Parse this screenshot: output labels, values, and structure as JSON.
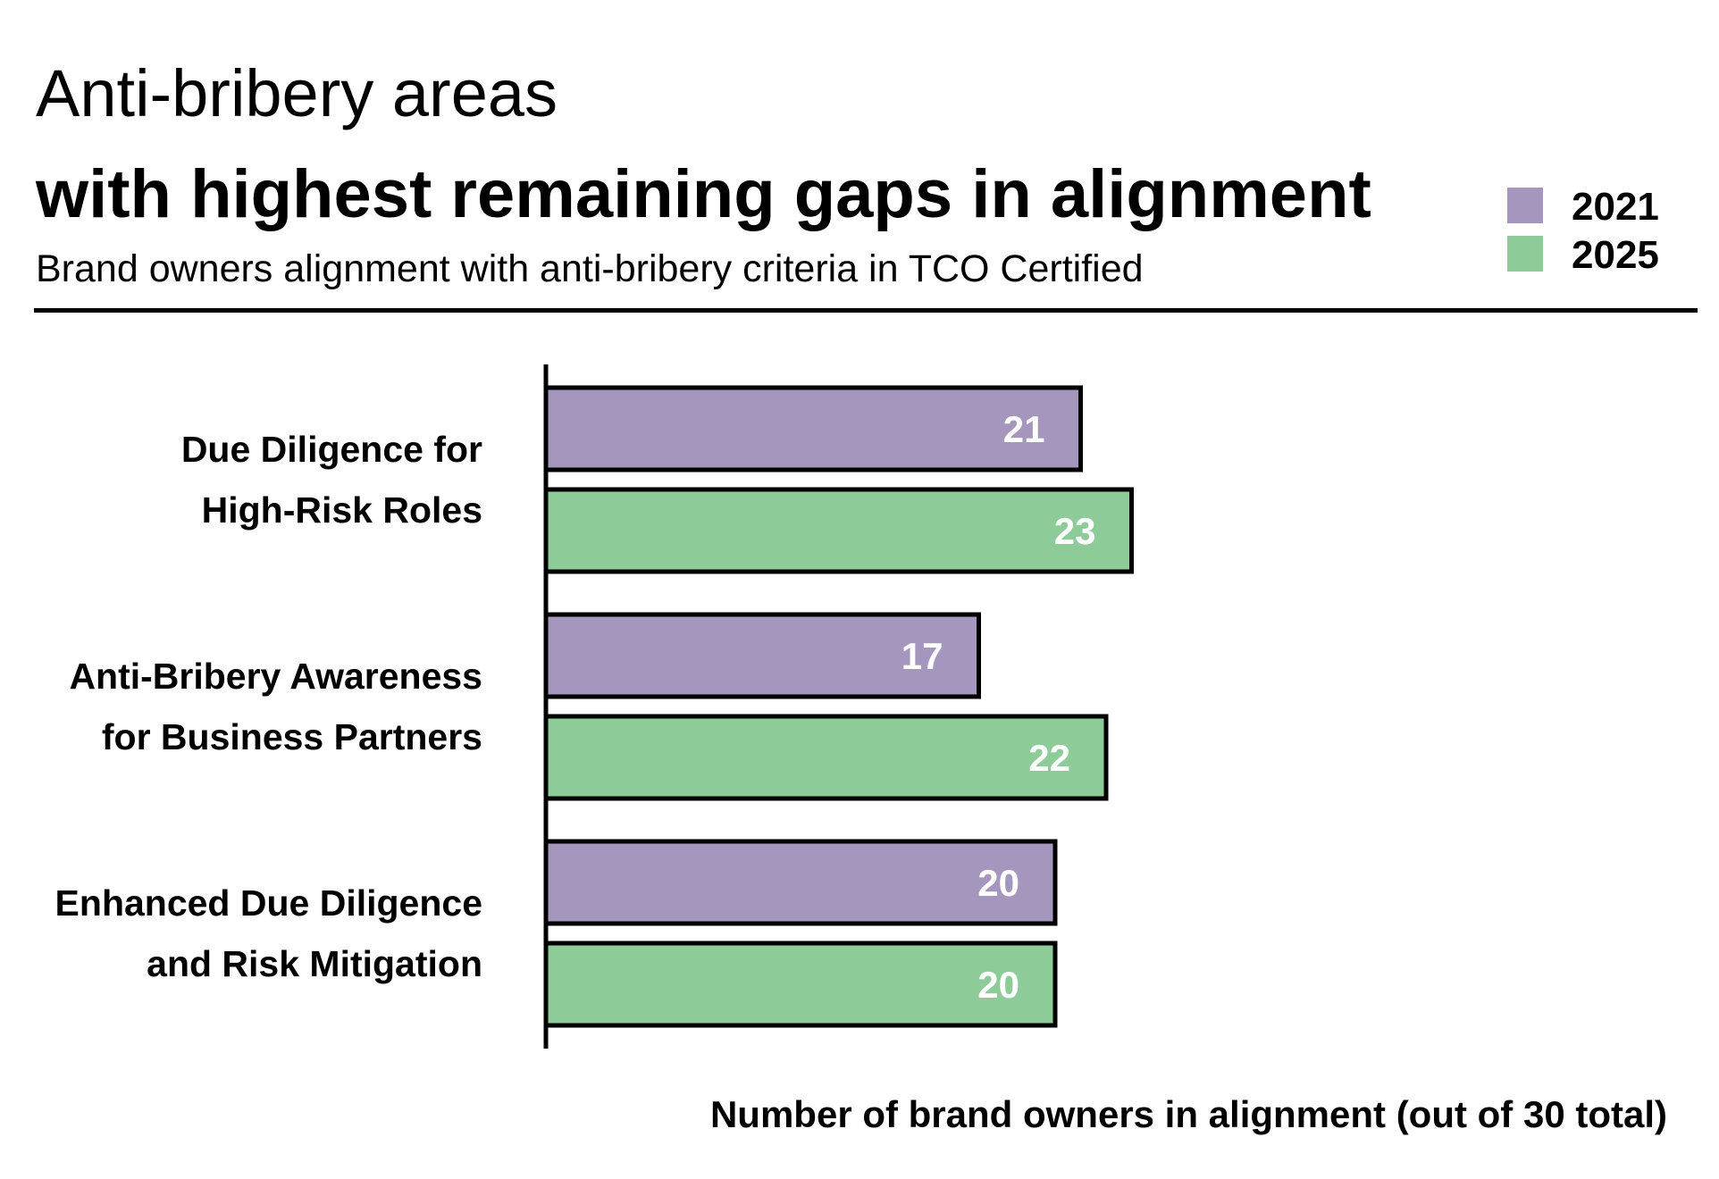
{
  "header": {
    "title_line1": "Anti-bribery areas",
    "title_line2": "with highest remaining gaps in alignment",
    "subtitle": "Brand owners alignment with anti-bribery criteria in TCO Certified"
  },
  "colors": {
    "series_2021": "#a596bd",
    "series_2025": "#8dcc98",
    "outline": "#000000"
  },
  "chart_data": {
    "type": "bar",
    "orientation": "horizontal",
    "title": "Anti-bribery areas with highest remaining gaps in alignment",
    "subtitle": "Brand owners alignment with anti-bribery criteria in TCO Certified",
    "categories": [
      [
        "Due Diligence for",
        "High-Risk Roles"
      ],
      [
        "Anti-Bribery Awareness",
        "for Business Partners"
      ],
      [
        "Enhanced Due Diligence",
        "and Risk Mitigation"
      ]
    ],
    "series": [
      {
        "name": "2021",
        "values": [
          21,
          17,
          20
        ]
      },
      {
        "name": "2025",
        "values": [
          23,
          22,
          20
        ]
      }
    ],
    "xlabel": "Number of brand owners in alignment (out of 30 total)",
    "ylabel": "",
    "xlim": [
      0,
      30
    ],
    "legend_position": "top-right",
    "grid": false
  }
}
